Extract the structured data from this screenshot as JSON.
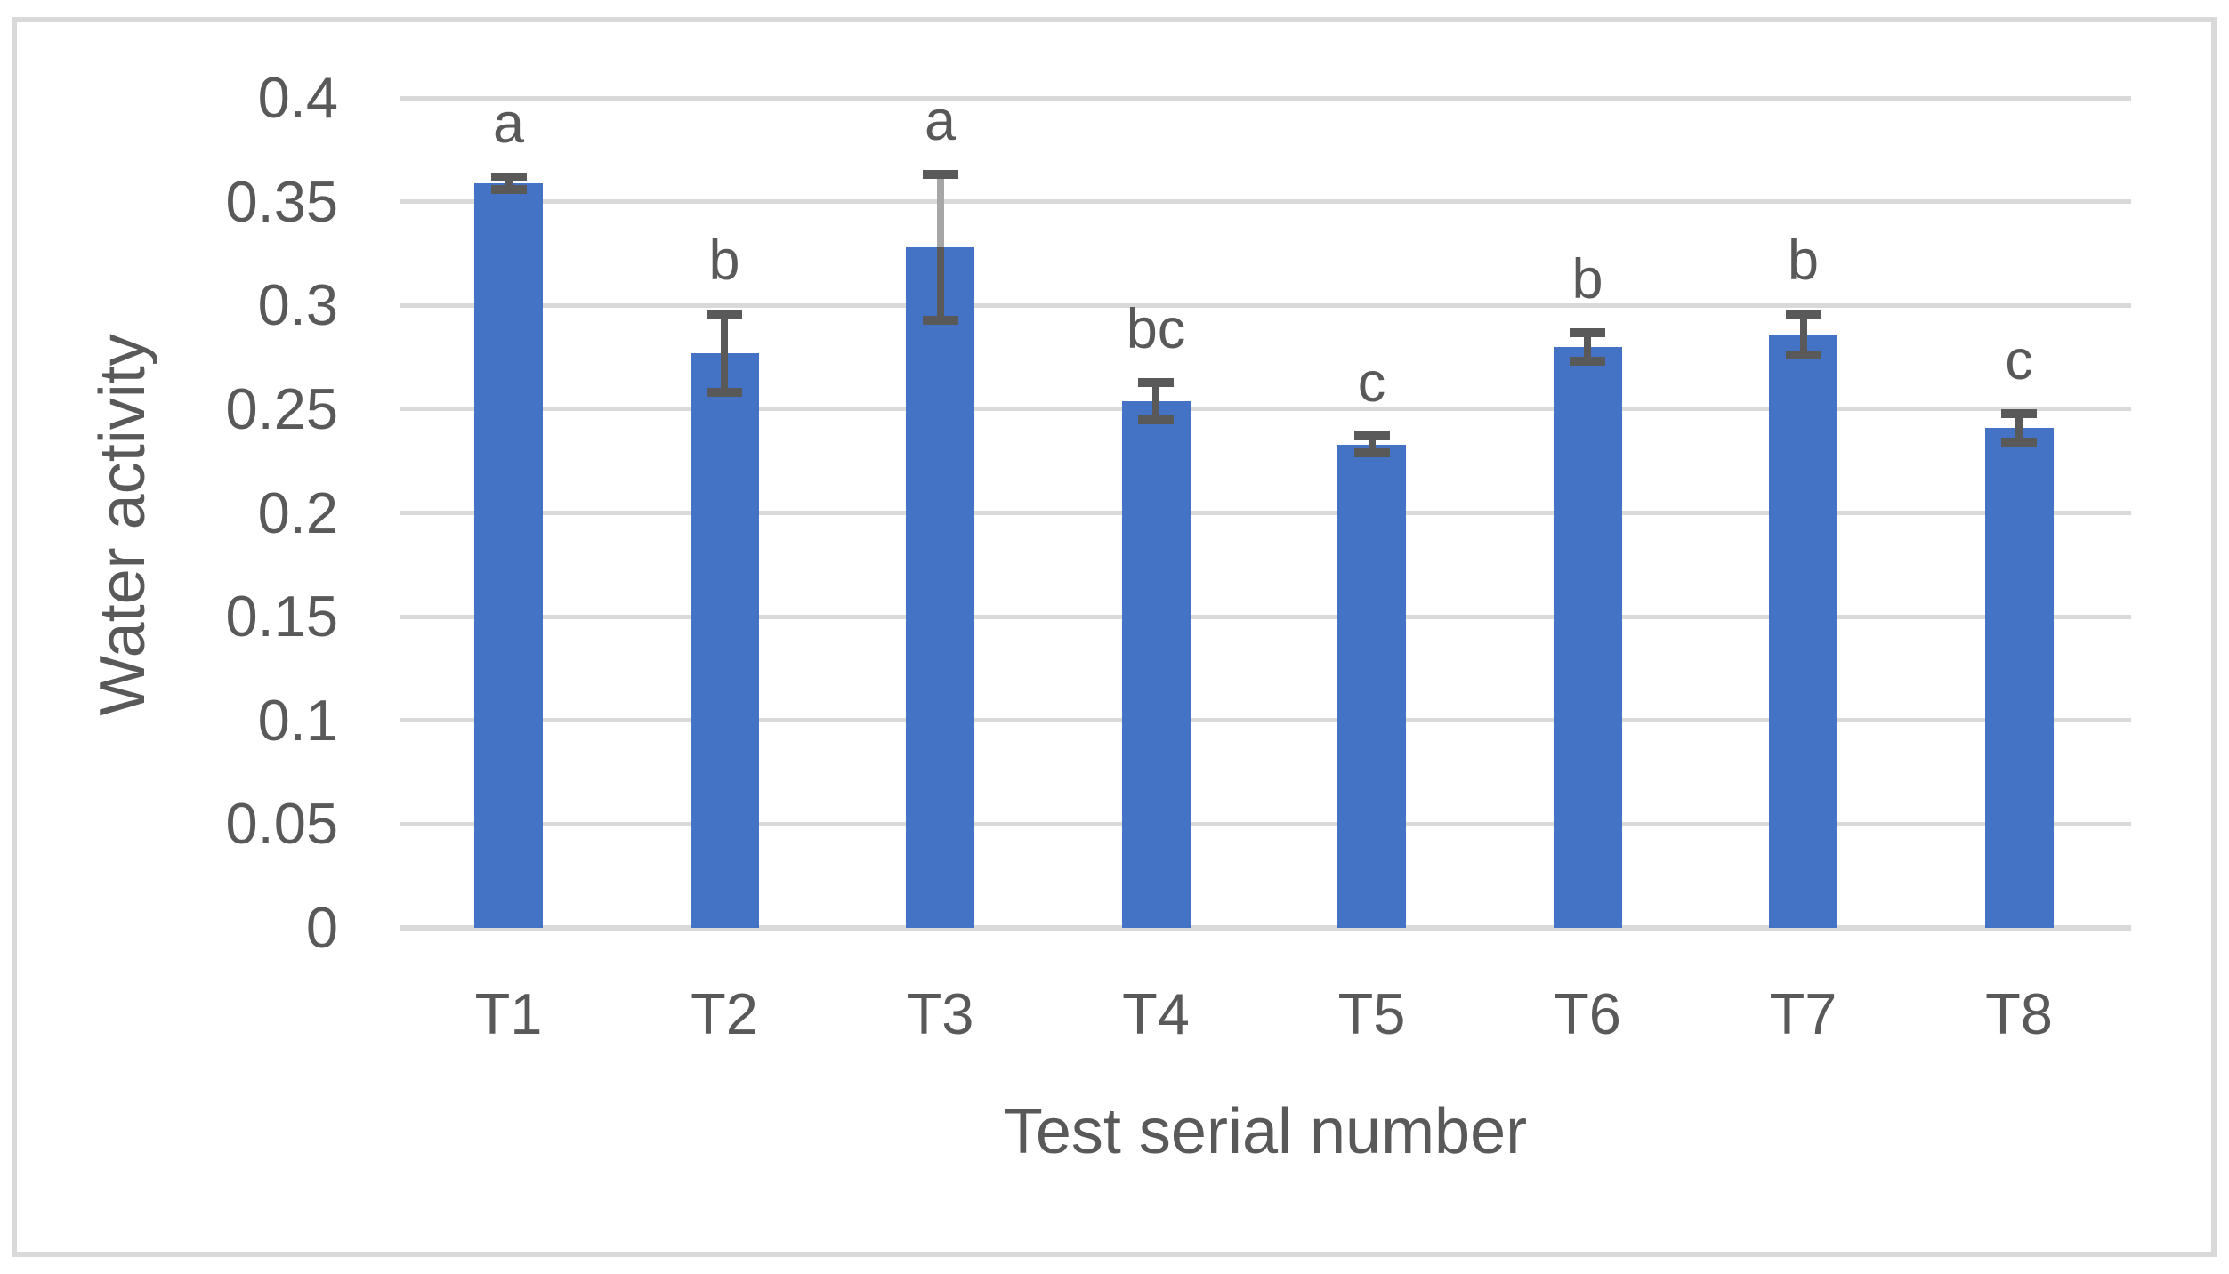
{
  "chart_data": {
    "type": "bar",
    "title": "",
    "xlabel": "Test serial number",
    "ylabel": "Water activity",
    "categories": [
      "T1",
      "T2",
      "T3",
      "T4",
      "T5",
      "T6",
      "T7",
      "T8"
    ],
    "values": [
      0.359,
      0.277,
      0.328,
      0.254,
      0.233,
      0.28,
      0.286,
      0.241
    ],
    "errors": [
      0.003,
      0.019,
      0.035,
      0.009,
      0.004,
      0.007,
      0.01,
      0.007
    ],
    "sig_letters": [
      "a",
      "b",
      "a",
      "bc",
      "c",
      "b",
      "b",
      "c"
    ],
    "ylim": [
      0,
      0.4
    ],
    "yticks": [
      {
        "value": 0.4,
        "label": "0.4"
      },
      {
        "value": 0.35,
        "label": "0.35"
      },
      {
        "value": 0.3,
        "label": "0.3"
      },
      {
        "value": 0.25,
        "label": "0.25"
      },
      {
        "value": 0.2,
        "label": "0.2"
      },
      {
        "value": 0.15,
        "label": "0.15"
      },
      {
        "value": 0.1,
        "label": "0.1"
      },
      {
        "value": 0.05,
        "label": "0.05"
      },
      {
        "value": 0,
        "label": "0"
      }
    ],
    "grid": true,
    "legend": false,
    "colors": {
      "bar": "#4472c4",
      "error_bar": "#595959",
      "t3_upper_stem": "#a6a6a6",
      "gridline": "#d9d9d9",
      "axis_line": "#d9d9d9",
      "text": "#595959",
      "figure_border": "#d9d9d9"
    }
  }
}
